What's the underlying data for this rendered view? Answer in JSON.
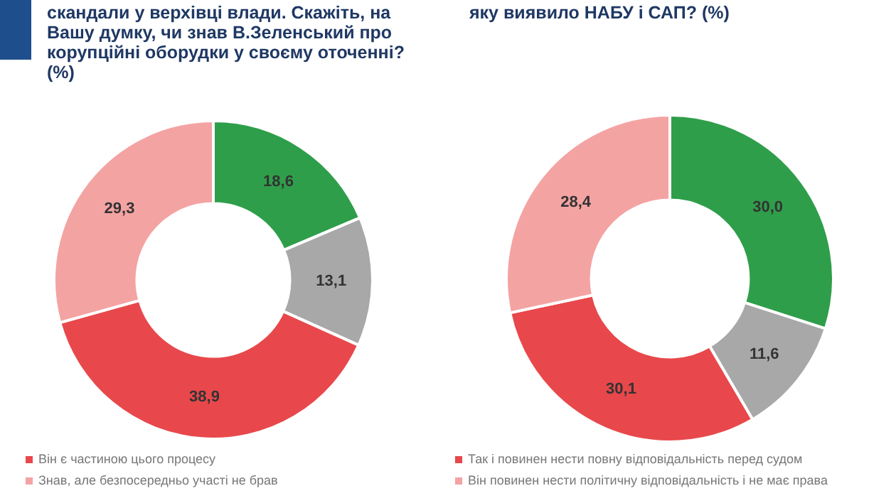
{
  "chart_data": [
    {
      "type": "donut",
      "title": "скандали у верхівці влади. Скажіть, на Вашу думку, чи знав В.Зеленський про корупційні оборудки у своєму оточенні? (%)",
      "categories": [
        null,
        null,
        "Він є частиною цього процесу",
        "Знав, але безпосередньо участі не брав"
      ],
      "values": [
        18.6,
        13.1,
        38.9,
        29.3
      ],
      "colors": [
        "#2f9e4a",
        "#a8a8a8",
        "#e8484b",
        "#f4a3a3"
      ],
      "value_labels": [
        "18,6",
        "13,1",
        "38,9",
        "29,3"
      ],
      "legend": "bottom"
    },
    {
      "type": "donut",
      "title": "яку виявило НАБУ і САП? (%)",
      "categories": [
        null,
        null,
        "Так і повинен нести повну відповідальність перед судом",
        "Він повинен нести політичну відповідальність і не має права"
      ],
      "values": [
        30.0,
        11.6,
        30.1,
        28.4
      ],
      "colors": [
        "#2f9e4a",
        "#a8a8a8",
        "#e8484b",
        "#f4a3a3"
      ],
      "value_labels": [
        "30,0",
        "11,6",
        "30,1",
        "28,4"
      ],
      "legend": "bottom"
    }
  ]
}
